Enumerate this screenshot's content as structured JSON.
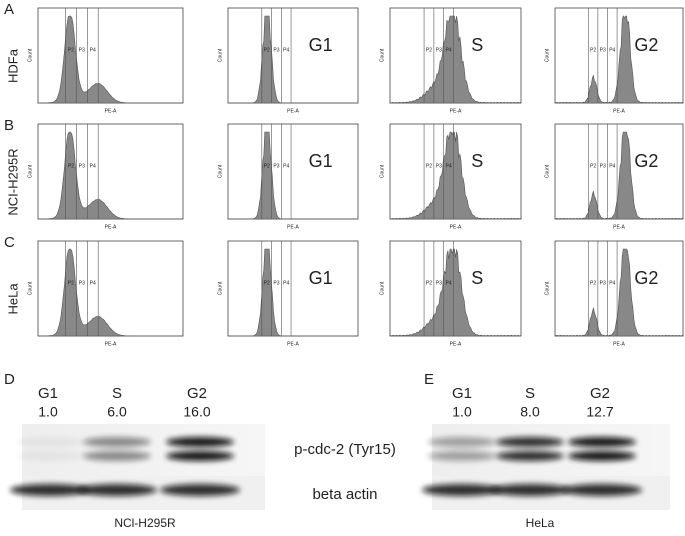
{
  "panels": [
    {
      "label": "A",
      "row_label": "HDFa",
      "phases": [
        "G1",
        "S",
        "G2"
      ]
    },
    {
      "label": "B",
      "row_label": "NCI-H295R",
      "phases": [
        "G1",
        "S",
        "G2"
      ]
    },
    {
      "label": "C",
      "row_label": "HeLa",
      "phases": [
        "G1",
        "S",
        "G2"
      ]
    }
  ],
  "gates": [
    "P2",
    "P3",
    "P4"
  ],
  "axis": {
    "x": "PE-A",
    "y": "Count"
  },
  "blots": [
    {
      "label": "D",
      "cell_line": "NCl-H295R",
      "phases": [
        "G1",
        "S",
        "G2"
      ],
      "values": [
        "1.0",
        "6.0",
        "16.0"
      ]
    },
    {
      "label": "E",
      "cell_line": "HeLa",
      "phases": [
        "G1",
        "S",
        "G2"
      ],
      "values": [
        "1.0",
        "8.0",
        "12.7"
      ]
    }
  ],
  "blot_labels": [
    "p-cdc-2 (Tyr15)",
    "beta actin"
  ]
}
